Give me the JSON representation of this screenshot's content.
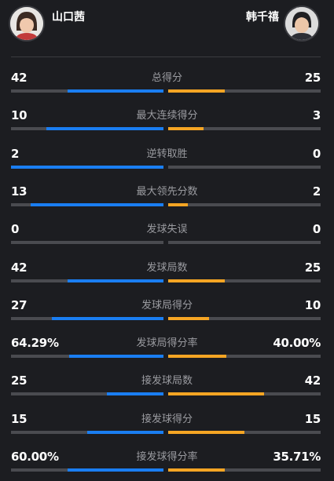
{
  "players": {
    "left": {
      "name": "山口茜",
      "avatar_icon": "player-photo-icon"
    },
    "right": {
      "name": "韩千禧",
      "avatar_icon": "player-photo-icon"
    }
  },
  "colors": {
    "left_bar": "#1a7ef2",
    "right_bar": "#f5a524",
    "track": "#4a4b50",
    "background": "#1c1d21"
  },
  "stats": [
    {
      "label": "总得分",
      "left": "42",
      "right": "25",
      "left_ratio": 0.63,
      "right_ratio": 0.37
    },
    {
      "label": "最大连续得分",
      "left": "10",
      "right": "3",
      "left_ratio": 0.77,
      "right_ratio": 0.23
    },
    {
      "label": "逆转取胜",
      "left": "2",
      "right": "0",
      "left_ratio": 1.0,
      "right_ratio": 0.0
    },
    {
      "label": "最大领先分数",
      "left": "13",
      "right": "2",
      "left_ratio": 0.87,
      "right_ratio": 0.13
    },
    {
      "label": "发球失误",
      "left": "0",
      "right": "0",
      "left_ratio": 0.0,
      "right_ratio": 0.0
    },
    {
      "label": "发球局数",
      "left": "42",
      "right": "25",
      "left_ratio": 0.63,
      "right_ratio": 0.37
    },
    {
      "label": "发球局得分",
      "left": "27",
      "right": "10",
      "left_ratio": 0.73,
      "right_ratio": 0.27
    },
    {
      "label": "发球局得分率",
      "left": "64.29%",
      "right": "40.00%",
      "left_ratio": 0.62,
      "right_ratio": 0.38
    },
    {
      "label": "接发球局数",
      "left": "25",
      "right": "42",
      "left_ratio": 0.37,
      "right_ratio": 0.63
    },
    {
      "label": "接发球得分",
      "left": "15",
      "right": "15",
      "left_ratio": 0.5,
      "right_ratio": 0.5
    },
    {
      "label": "接发球得分率",
      "left": "60.00%",
      "right": "35.71%",
      "left_ratio": 0.63,
      "right_ratio": 0.37
    }
  ]
}
